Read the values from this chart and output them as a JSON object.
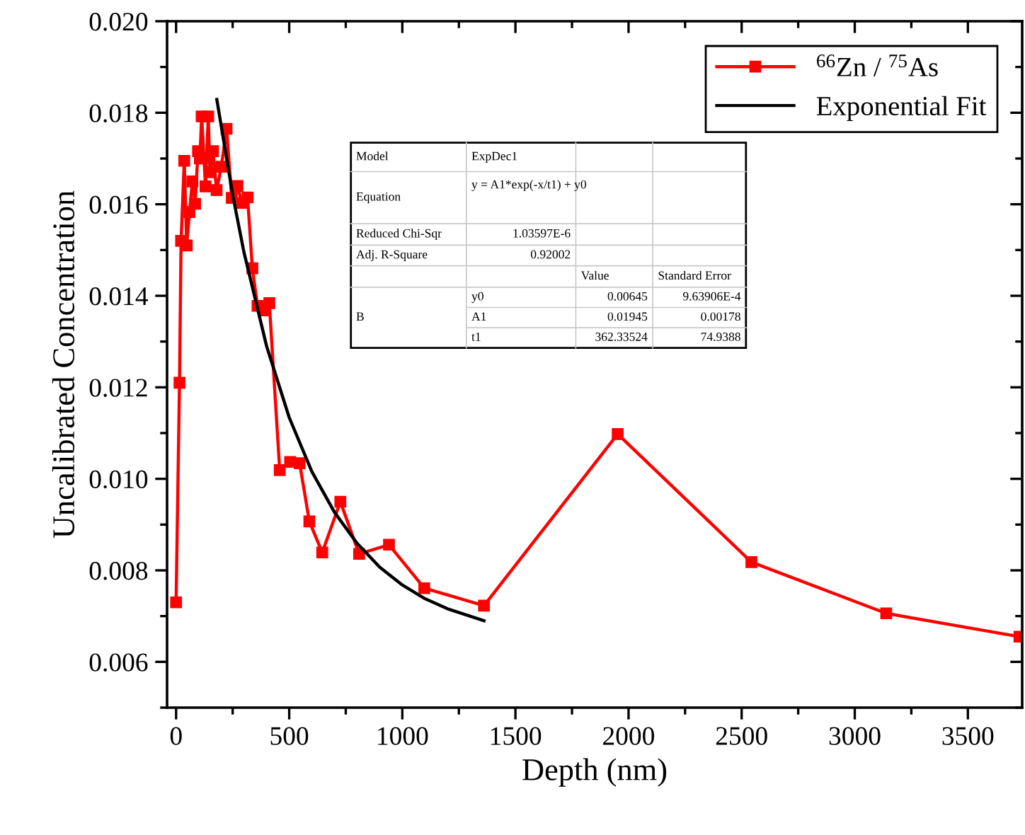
{
  "chart_data": {
    "type": "line",
    "xlabel": "Depth (nm)",
    "ylabel": "Uncalibrated Concentration",
    "xlim": [
      -40,
      3740
    ],
    "xticks": [
      0,
      500,
      1000,
      1500,
      2000,
      2500,
      3000,
      3500
    ],
    "ylim": [
      0.005,
      0.02
    ],
    "yticks": [
      {
        "value": 0.006,
        "label": "0.006"
      },
      {
        "value": 0.008,
        "label": "0.008"
      },
      {
        "value": 0.01,
        "label": "0.010"
      },
      {
        "value": 0.012,
        "label": "0.012"
      },
      {
        "value": 0.014,
        "label": "0.014"
      },
      {
        "value": 0.016,
        "label": "0.016"
      },
      {
        "value": 0.018,
        "label": "0.018"
      },
      {
        "value": 0.02,
        "label": "0.020"
      }
    ],
    "grid": false,
    "legend": "top right",
    "series": [
      {
        "name": "$^{66}$Zn / $^{75}$As",
        "color": "#ff0000",
        "marker": "square",
        "line_style": "solid",
        "x": [
          0,
          15,
          22,
          36,
          47,
          59,
          72,
          84,
          97,
          105,
          113,
          130,
          142,
          150,
          163,
          179,
          200,
          223,
          246,
          271,
          291,
          316,
          337,
          360,
          387,
          412,
          458,
          504,
          546,
          589,
          646,
          726,
          809,
          941,
          1097,
          1361,
          1952,
          2543,
          3139,
          3728
        ],
        "values": [
          0.0073,
          0.0121,
          0.0152,
          0.01695,
          0.0151,
          0.01583,
          0.0165,
          0.01601,
          0.01716,
          0.017,
          0.01792,
          0.01639,
          0.01792,
          0.0167,
          0.01716,
          0.01631,
          0.01682,
          0.01765,
          0.01614,
          0.0164,
          0.01603,
          0.01615,
          0.0146,
          0.01378,
          0.01368,
          0.01384,
          0.01019,
          0.01037,
          0.01034,
          0.00907,
          0.00839,
          0.0095,
          0.00836,
          0.00856,
          0.00761,
          0.00723,
          0.01098,
          0.00818,
          0.00706,
          0.00655
        ]
      },
      {
        "name": "Exponential Fit",
        "color": "#000000",
        "marker": "none",
        "line_style": "solid",
        "x": [
          180,
          250,
          300,
          400,
          500,
          600,
          700,
          800,
          900,
          1000,
          1100,
          1200,
          1361
        ],
        "values": [
          0.01829,
          0.01621,
          0.01495,
          0.0129,
          0.01134,
          0.01016,
          0.00927,
          0.00859,
          0.00807,
          0.00768,
          0.00738,
          0.00716,
          0.0069
        ]
      }
    ],
    "annotations": [
      "Model",
      "ExpDec1",
      "Equation",
      "y = A1*exp(-x/t1) + y0",
      "Reduced Chi-Sqr",
      "1.03597E-6",
      "Adj. R-Square",
      "0.92002",
      "Value",
      "Standard Error",
      "B",
      "y0",
      "0.00645",
      "9.63906E-4",
      "A1",
      "0.01945",
      "0.00178",
      "t1",
      "362.33524",
      "74.9388"
    ]
  }
}
